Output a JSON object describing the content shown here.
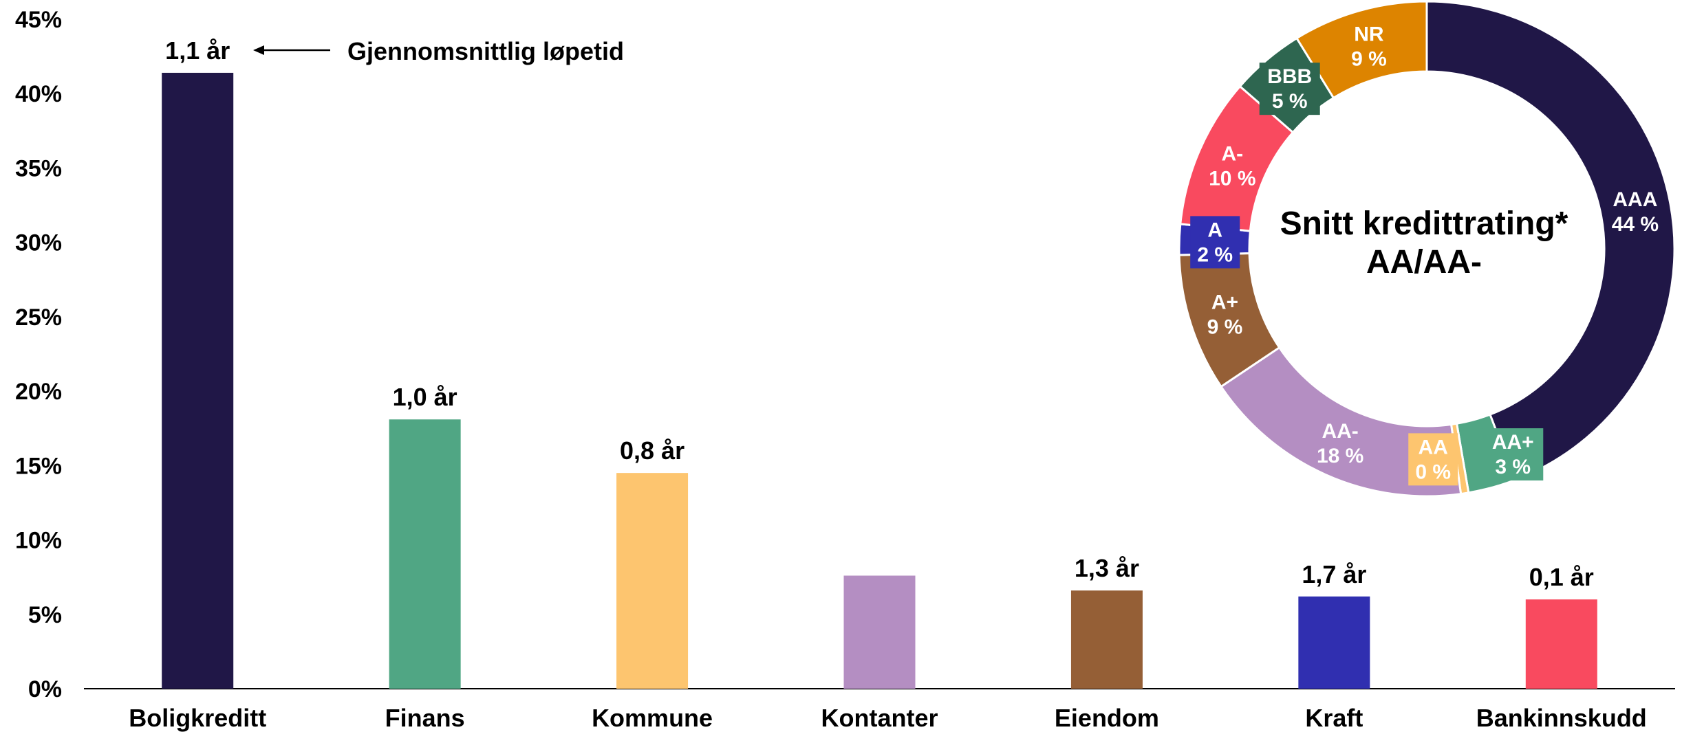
{
  "chart_data": [
    {
      "type": "bar",
      "categories": [
        "Boligkreditt",
        "Finans",
        "Kommune",
        "Kontanter",
        "Eiendom",
        "Kraft",
        "Bankinnskudd"
      ],
      "values": [
        41.4,
        18.1,
        14.5,
        7.6,
        6.6,
        6.2,
        6.0
      ],
      "bar_labels": [
        "1,1 år",
        "1,0 år",
        "0,8 år",
        "",
        "1,3 år",
        "1,7 år",
        "0,1 år"
      ],
      "colors": [
        "#201747",
        "#50a684",
        "#fdc56f",
        "#b48ec2",
        "#955f36",
        "#302fb0",
        "#f94a5f"
      ],
      "ylim": [
        0,
        45
      ],
      "yticks": [
        "0%",
        "5%",
        "10%",
        "15%",
        "20%",
        "25%",
        "30%",
        "35%",
        "40%",
        "45%"
      ],
      "ytick_values": [
        0,
        5,
        10,
        15,
        20,
        25,
        30,
        35,
        40,
        45
      ],
      "annotation": "Gjennomsnittlig løpetid",
      "grid": false
    },
    {
      "type": "pie",
      "variant": "donut",
      "center_title": "Snitt kredittrating*",
      "center_value": "AA/AA-",
      "slices": [
        {
          "name": "AAA",
          "value_label": "44 %",
          "value": 44.2,
          "color": "#201747"
        },
        {
          "name": "AA+",
          "value_label": "3 %",
          "value": 3.1,
          "color": "#50a684"
        },
        {
          "name": "AA",
          "value_label": "0 %",
          "value": 0.5,
          "color": "#fdc56f"
        },
        {
          "name": "AA-",
          "value_label": "18 %",
          "value": 17.8,
          "color": "#b48ec2"
        },
        {
          "name": "A+",
          "value_label": "9 %",
          "value": 9.0,
          "color": "#955f36"
        },
        {
          "name": "A",
          "value_label": "2 %",
          "value": 2.0,
          "color": "#302fb0"
        },
        {
          "name": "A-",
          "value_label": "10 %",
          "value": 9.8,
          "color": "#f94a5f"
        },
        {
          "name": "BBB",
          "value_label": "5 %",
          "value": 4.8,
          "color": "#2e6650"
        },
        {
          "name": "NR",
          "value_label": "9 %",
          "value": 8.8,
          "color": "#dd8400"
        }
      ]
    }
  ]
}
